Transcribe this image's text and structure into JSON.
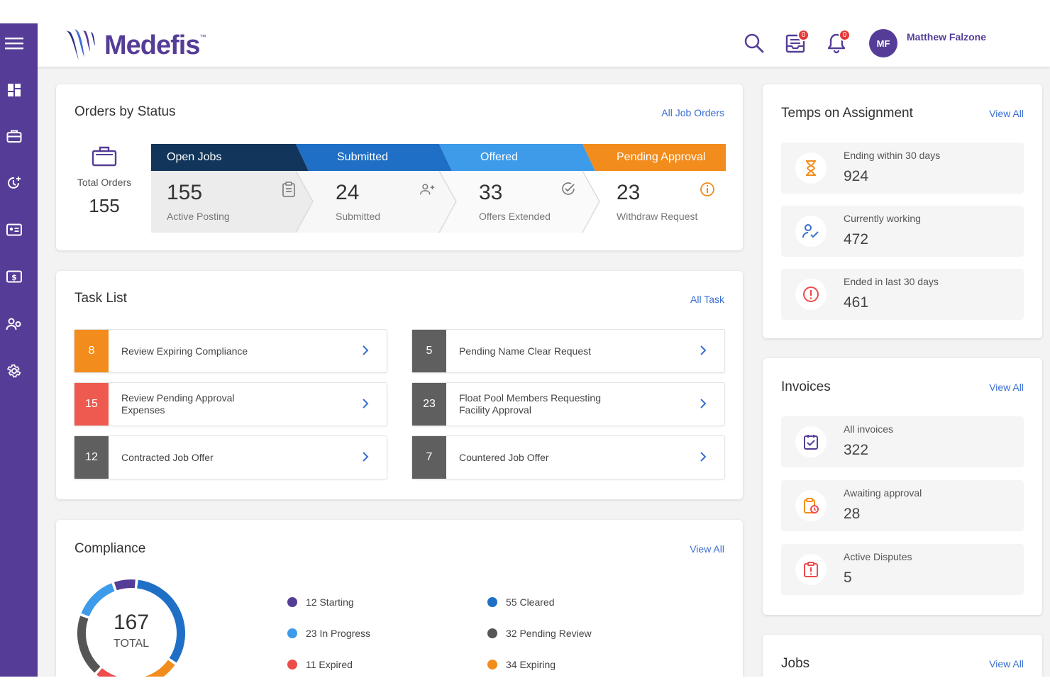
{
  "header": {
    "brand": "Medefis",
    "trademark": "™",
    "user_initials": "MF",
    "user_name": "Matthew Falzone",
    "inbox_badge": "0",
    "notifications_badge": "0"
  },
  "sidebar": {
    "items": [
      "menu-icon",
      "dashboard-icon",
      "briefcase-icon",
      "clock-add-icon",
      "id-card-icon",
      "dollar-icon",
      "users-icon",
      "gear-icon"
    ]
  },
  "orders": {
    "title": "Orders by Status",
    "link": "All Job Orders",
    "total_label": "Total Orders",
    "total_value": "155",
    "segments": [
      {
        "head": "Open Jobs",
        "value": "155",
        "sub": "Active Posting",
        "color": "#12365b"
      },
      {
        "head": "Submitted",
        "value": "24",
        "sub": "Submitted",
        "color": "#1f6fc6"
      },
      {
        "head": "Offered",
        "value": "33",
        "sub": "Offers Extended",
        "color": "#3d9be9"
      },
      {
        "head": "Pending Approval",
        "value": "23",
        "sub": "Withdraw Request",
        "color": "#f28c1c"
      }
    ]
  },
  "tasks": {
    "title": "Task List",
    "link": "All Task",
    "items": [
      {
        "count": "8",
        "label": "Review Expiring Compliance",
        "color": "#f28c1c"
      },
      {
        "count": "5",
        "label": "Pending Name Clear Request",
        "color": "#5f5f5f"
      },
      {
        "count": "15",
        "label": "Review Pending Approval Expenses",
        "color": "#ee5a4f"
      },
      {
        "count": "23",
        "label": "Float Pool Members Requesting Facility Approval",
        "color": "#5f5f5f"
      },
      {
        "count": "12",
        "label": "Contracted Job Offer",
        "color": "#5f5f5f"
      },
      {
        "count": "7",
        "label": "Countered Job Offer",
        "color": "#5f5f5f"
      }
    ]
  },
  "compliance": {
    "title": "Compliance",
    "link": "View All",
    "total_value": "167",
    "total_label": "TOTAL",
    "legend": [
      {
        "label": "12 Starting",
        "color": "#553d97"
      },
      {
        "label": "55 Cleared",
        "color": "#1f6fc6"
      },
      {
        "label": "23 In Progress",
        "color": "#3d9be9"
      },
      {
        "label": "32 Pending Review",
        "color": "#555555"
      },
      {
        "label": "11 Expired",
        "color": "#ee4b4b"
      },
      {
        "label": "34 Expiring",
        "color": "#f28c1c"
      }
    ]
  },
  "temps": {
    "title": "Temps on Assignment",
    "link": "View All",
    "items": [
      {
        "label": "Ending within 30 days",
        "value": "924"
      },
      {
        "label": "Currently working",
        "value": "472"
      },
      {
        "label": "Ended in last 30 days",
        "value": "461"
      }
    ]
  },
  "invoices": {
    "title": "Invoices",
    "link": "View All",
    "items": [
      {
        "label": "All invoices",
        "value": "322"
      },
      {
        "label": "Awaiting approval",
        "value": "28"
      },
      {
        "label": "Active Disputes",
        "value": "5"
      }
    ]
  },
  "jobs": {
    "title": "Jobs",
    "link": "View All"
  }
}
